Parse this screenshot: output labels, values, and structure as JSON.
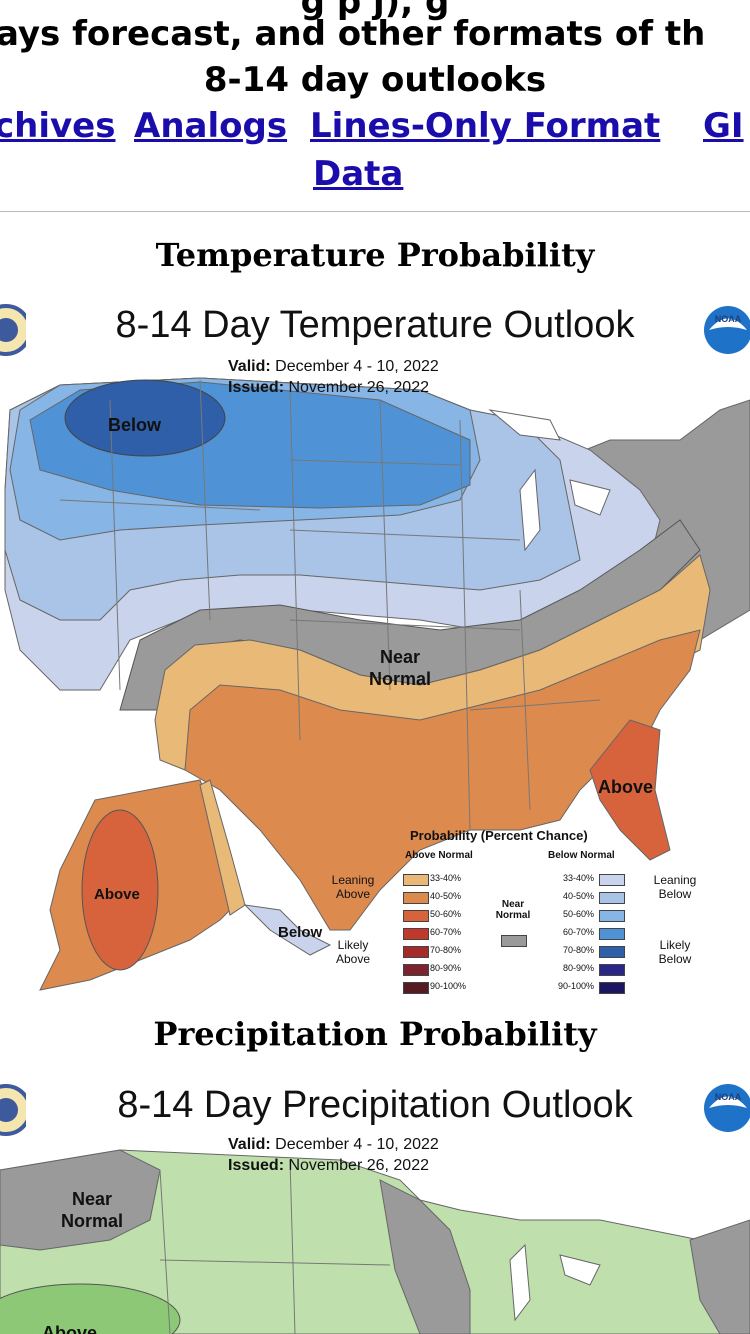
{
  "header": {
    "line1": "ays forecast, and other formats of th",
    "line2": "8-14 day outlooks",
    "links": [
      "chives",
      "Analogs",
      "Lines-Only Format",
      "GI"
    ],
    "link_data": "Data"
  },
  "temperature": {
    "section_title": "Temperature Probability",
    "map_title": "8-14 Day Temperature Outlook",
    "valid_label": "Valid:",
    "valid_value": "December 4 - 10, 2022",
    "issued_label": "Issued:",
    "issued_value": "November 26, 2022",
    "labels": {
      "below": "Below",
      "near_1": "Near",
      "near_2": "Normal",
      "above_fl": "Above",
      "above_ak": "Above",
      "below_ak": "Below"
    },
    "legend": {
      "title": "Probability (Percent Chance)",
      "above_normal": "Above Normal",
      "below_normal": "Below Normal",
      "near_normal_1": "Near",
      "near_normal_2": "Normal",
      "leaning_above_1": "Leaning",
      "leaning_above_2": "Above",
      "likely_above_1": "Likely",
      "likely_above_2": "Above",
      "leaning_below_1": "Leaning",
      "leaning_below_2": "Below",
      "likely_below_1": "Likely",
      "likely_below_2": "Below",
      "ranges": [
        "33-40%",
        "40-50%",
        "50-60%",
        "60-70%",
        "70-80%",
        "80-90%",
        "90-100%"
      ],
      "above_colors": [
        "#e9b978",
        "#dd8a4e",
        "#d6633c",
        "#c0392b",
        "#a52a2a",
        "#7b2430",
        "#561a22"
      ],
      "below_colors": [
        "#c9d3ec",
        "#a9c4e6",
        "#86b5e6",
        "#4f93d6",
        "#2f5fa8",
        "#2b2787",
        "#1c1660"
      ],
      "near_color": "#9a9a9a"
    }
  },
  "precipitation": {
    "section_title": "Precipitation Probability",
    "map_title": "8-14 Day Precipitation Outlook",
    "valid_label": "Valid:",
    "valid_value": "December 4 - 10, 2022",
    "issued_label": "Issued:",
    "issued_value": "November 26, 2022",
    "labels": {
      "near_1": "Near",
      "near_2": "Normal",
      "above": "Above"
    }
  },
  "icons": [
    "noaa-logo-icon",
    "nws-seal-icon"
  ]
}
